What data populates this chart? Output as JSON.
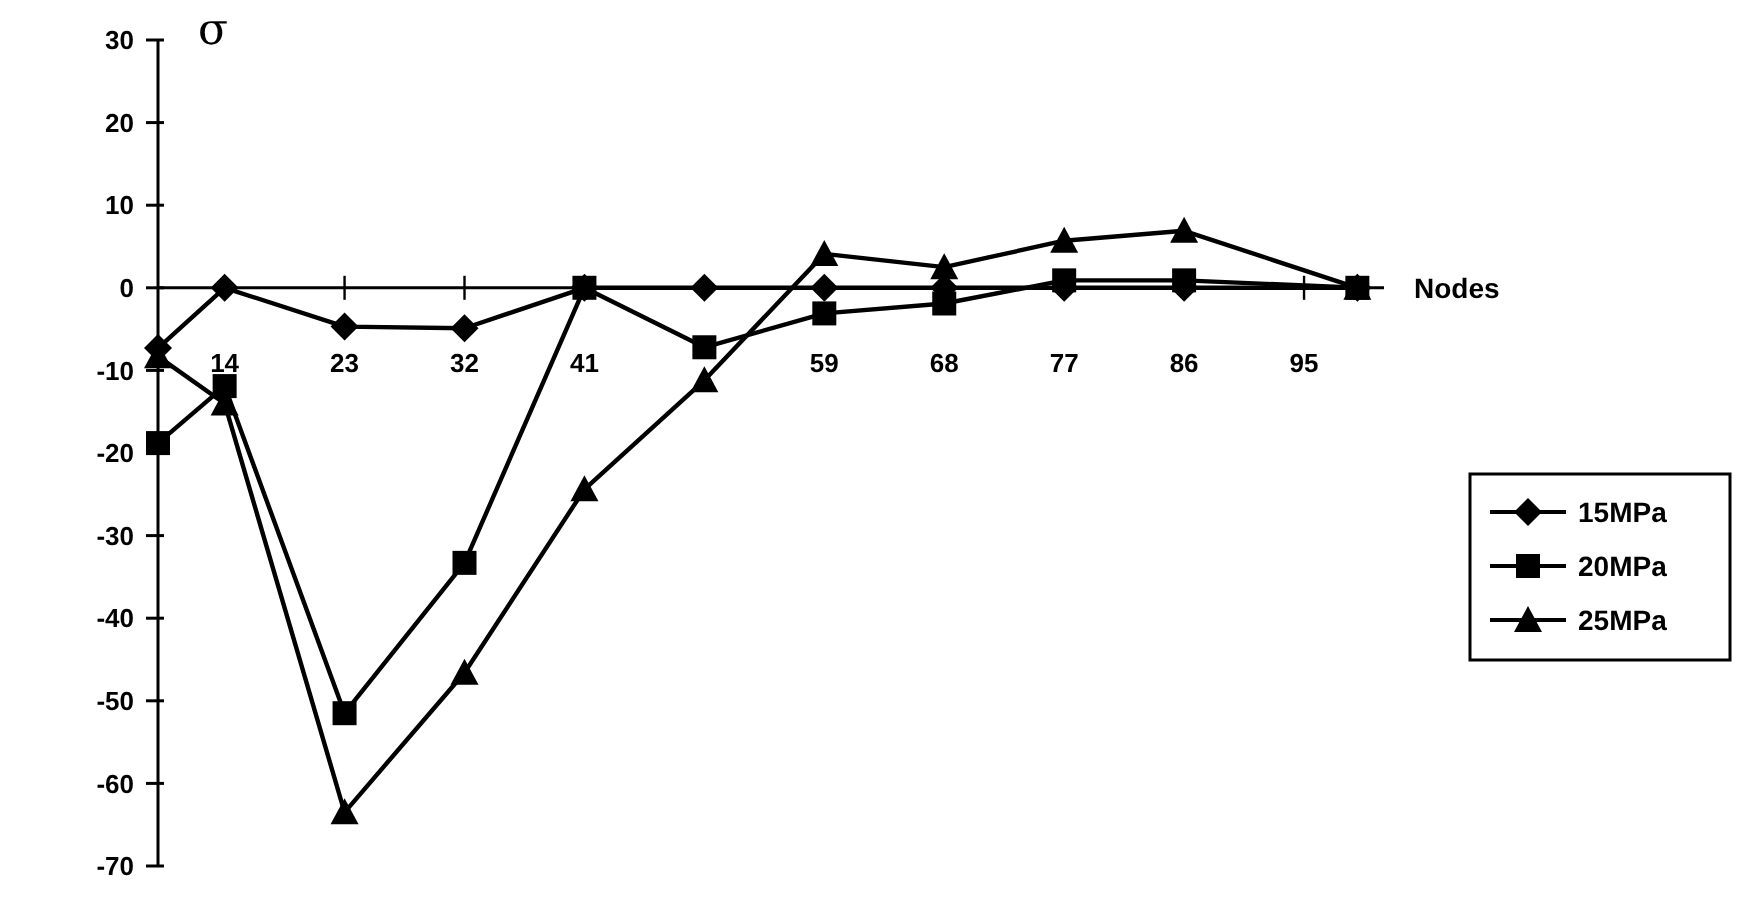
{
  "chart_data": {
    "type": "line",
    "ylabel": "σ",
    "xlabel": "Nodes",
    "xlim": [
      9,
      101
    ],
    "xticks": [
      14,
      23,
      32,
      41,
      59,
      68,
      77,
      86,
      95
    ],
    "ylim": [
      -70,
      30
    ],
    "yticks": [
      -70,
      -60,
      -50,
      -40,
      -30,
      -20,
      -10,
      0,
      10,
      20,
      30
    ],
    "grid": false,
    "legend": "right",
    "series": [
      {
        "name": "15MPa",
        "color": "#000000",
        "marker": "diamond",
        "x": [
          9,
          14,
          23,
          32,
          41,
          50,
          59,
          68,
          77,
          86,
          99
        ],
        "values": [
          -7.3,
          0,
          -4.7,
          -4.9,
          0,
          0,
          0,
          0,
          0,
          0,
          0
        ]
      },
      {
        "name": "20MPa",
        "color": "#000000",
        "marker": "square",
        "x": [
          9,
          14,
          23,
          32,
          41,
          50,
          59,
          68,
          77,
          86,
          99
        ],
        "values": [
          -18.8,
          -11.9,
          -51.5,
          -33.3,
          0,
          -7.2,
          -3.1,
          -1.9,
          0.9,
          0.9,
          0
        ]
      },
      {
        "name": "25MPa",
        "color": "#000000",
        "marker": "triangle",
        "x": [
          9,
          14,
          23,
          32,
          41,
          50,
          59,
          68,
          77,
          86,
          99
        ],
        "values": [
          -8.3,
          -14,
          -63.5,
          -46.6,
          -24.4,
          -11.2,
          4.1,
          2.5,
          5.7,
          6.9,
          0
        ]
      }
    ]
  }
}
